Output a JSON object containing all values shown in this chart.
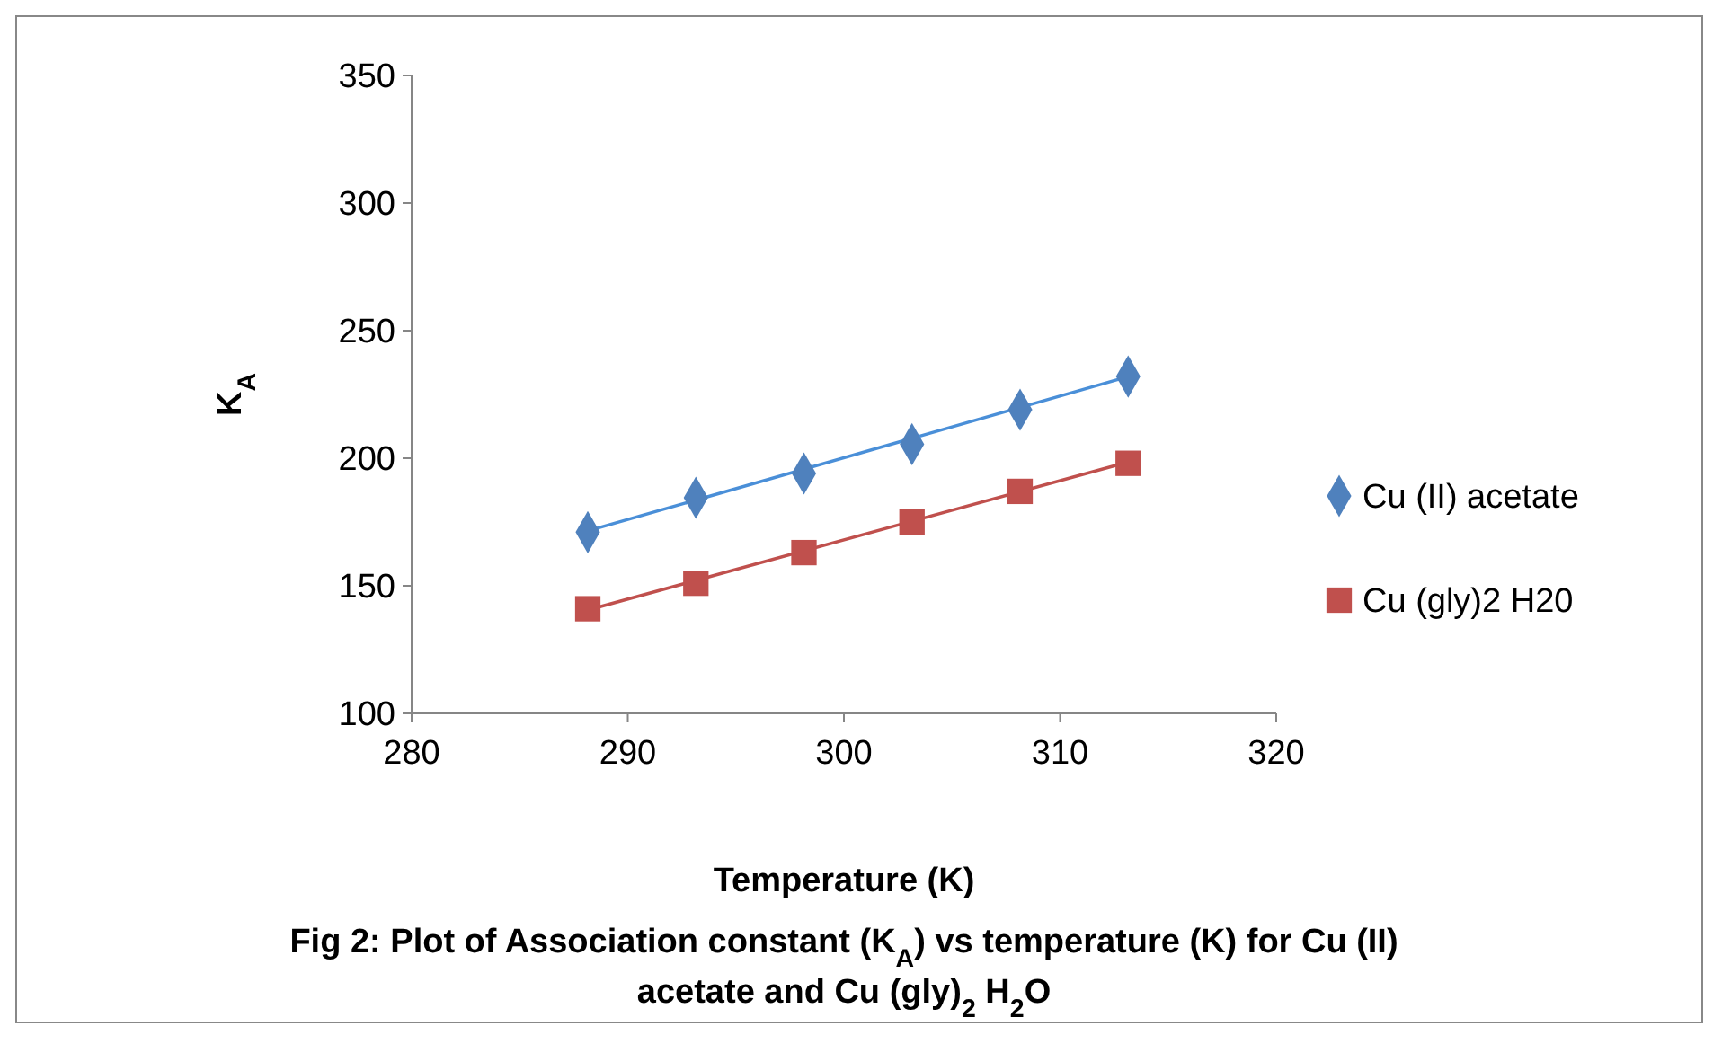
{
  "chart_data": {
    "type": "scatter",
    "title": "Fig 2: Plot of Association constant (K$_{A}$) vs temperature (K) for Cu (II) acetate and Cu (gly)$_{2}$ H$_{2}$O",
    "xlabel": "Temperature (K)",
    "ylabel": "K$_{A}$",
    "xlim": [
      280,
      320
    ],
    "xticks": [
      280,
      290,
      300,
      310,
      320
    ],
    "ylim": [
      100,
      350
    ],
    "yticks": [
      100,
      150,
      200,
      250,
      300,
      350
    ],
    "grid": false,
    "legend": "right",
    "series": [
      {
        "name": "Cu (II) acetate",
        "color": "#4f81bd",
        "marker": "diamond",
        "x": [
          288.15,
          293.15,
          298.15,
          303.15,
          308.15,
          313.15
        ],
        "values": [
          171,
          184.5,
          194,
          205.5,
          219,
          232
        ]
      },
      {
        "name": "Cu (gly)2 H20",
        "color": "#c0504d",
        "marker": "square",
        "x": [
          288.15,
          293.15,
          298.15,
          303.15,
          308.15,
          313.15
        ],
        "values": [
          141,
          151,
          163,
          175,
          187,
          198
        ]
      },
      {
        "type": "line",
        "color": "#4a8fd8",
        "marker": "none",
        "x": [
          288.15,
          313.15
        ],
        "values": [
          171.5,
          232
        ]
      },
      {
        "type": "line",
        "color": "#c0504d",
        "marker": "none",
        "x": [
          288.15,
          313.15
        ],
        "values": [
          140.5,
          198.5
        ]
      }
    ]
  }
}
